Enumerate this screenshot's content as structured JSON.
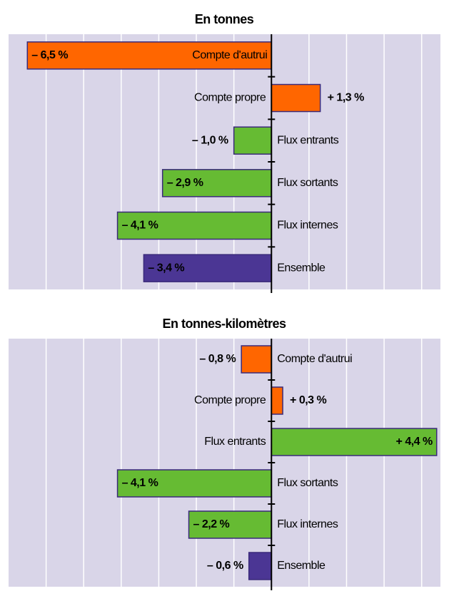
{
  "chart_data": [
    {
      "type": "bar",
      "orientation": "horizontal",
      "title": "En tonnes",
      "categories": [
        "Compte d'autrui",
        "Compte propre",
        "Flux entrants",
        "Flux sortants",
        "Flux internes",
        "Ensemble"
      ],
      "values": [
        -6.5,
        1.3,
        -1.0,
        -2.9,
        -4.1,
        -3.4
      ],
      "value_labels": [
        "– 6,5 %",
        "+ 1,3 %",
        "– 1,0 %",
        "– 2,9 %",
        "– 4,1 %",
        "– 3,4 %"
      ],
      "colors": [
        "#ff6600",
        "#ff6600",
        "#66bb33",
        "#66bb33",
        "#66bb33",
        "#4b3694"
      ],
      "xlim": [
        -7,
        4.5
      ],
      "xticks": [
        -6,
        -5,
        -4,
        -3,
        -2,
        -1,
        0,
        1,
        2,
        3,
        4
      ],
      "grid": true
    },
    {
      "type": "bar",
      "orientation": "horizontal",
      "title": "En tonnes-kilomètres",
      "categories": [
        "Compte d'autrui",
        "Compte propre",
        "Flux entrants",
        "Flux sortants",
        "Flux internes",
        "Ensemble"
      ],
      "values": [
        -0.8,
        0.3,
        4.4,
        -4.1,
        -2.2,
        -0.6
      ],
      "value_labels": [
        "– 0,8 %",
        "+ 0,3 %",
        "+ 4,4 %",
        "– 4,1 %",
        "– 2,2 %",
        "– 0,6 %"
      ],
      "colors": [
        "#ff6600",
        "#ff6600",
        "#66bb33",
        "#66bb33",
        "#66bb33",
        "#4b3694"
      ],
      "xlim": [
        -7,
        4.5
      ],
      "xticks": [
        -6,
        -5,
        -4,
        -3,
        -2,
        -1,
        0,
        1,
        2,
        3,
        4
      ],
      "grid": true
    }
  ]
}
